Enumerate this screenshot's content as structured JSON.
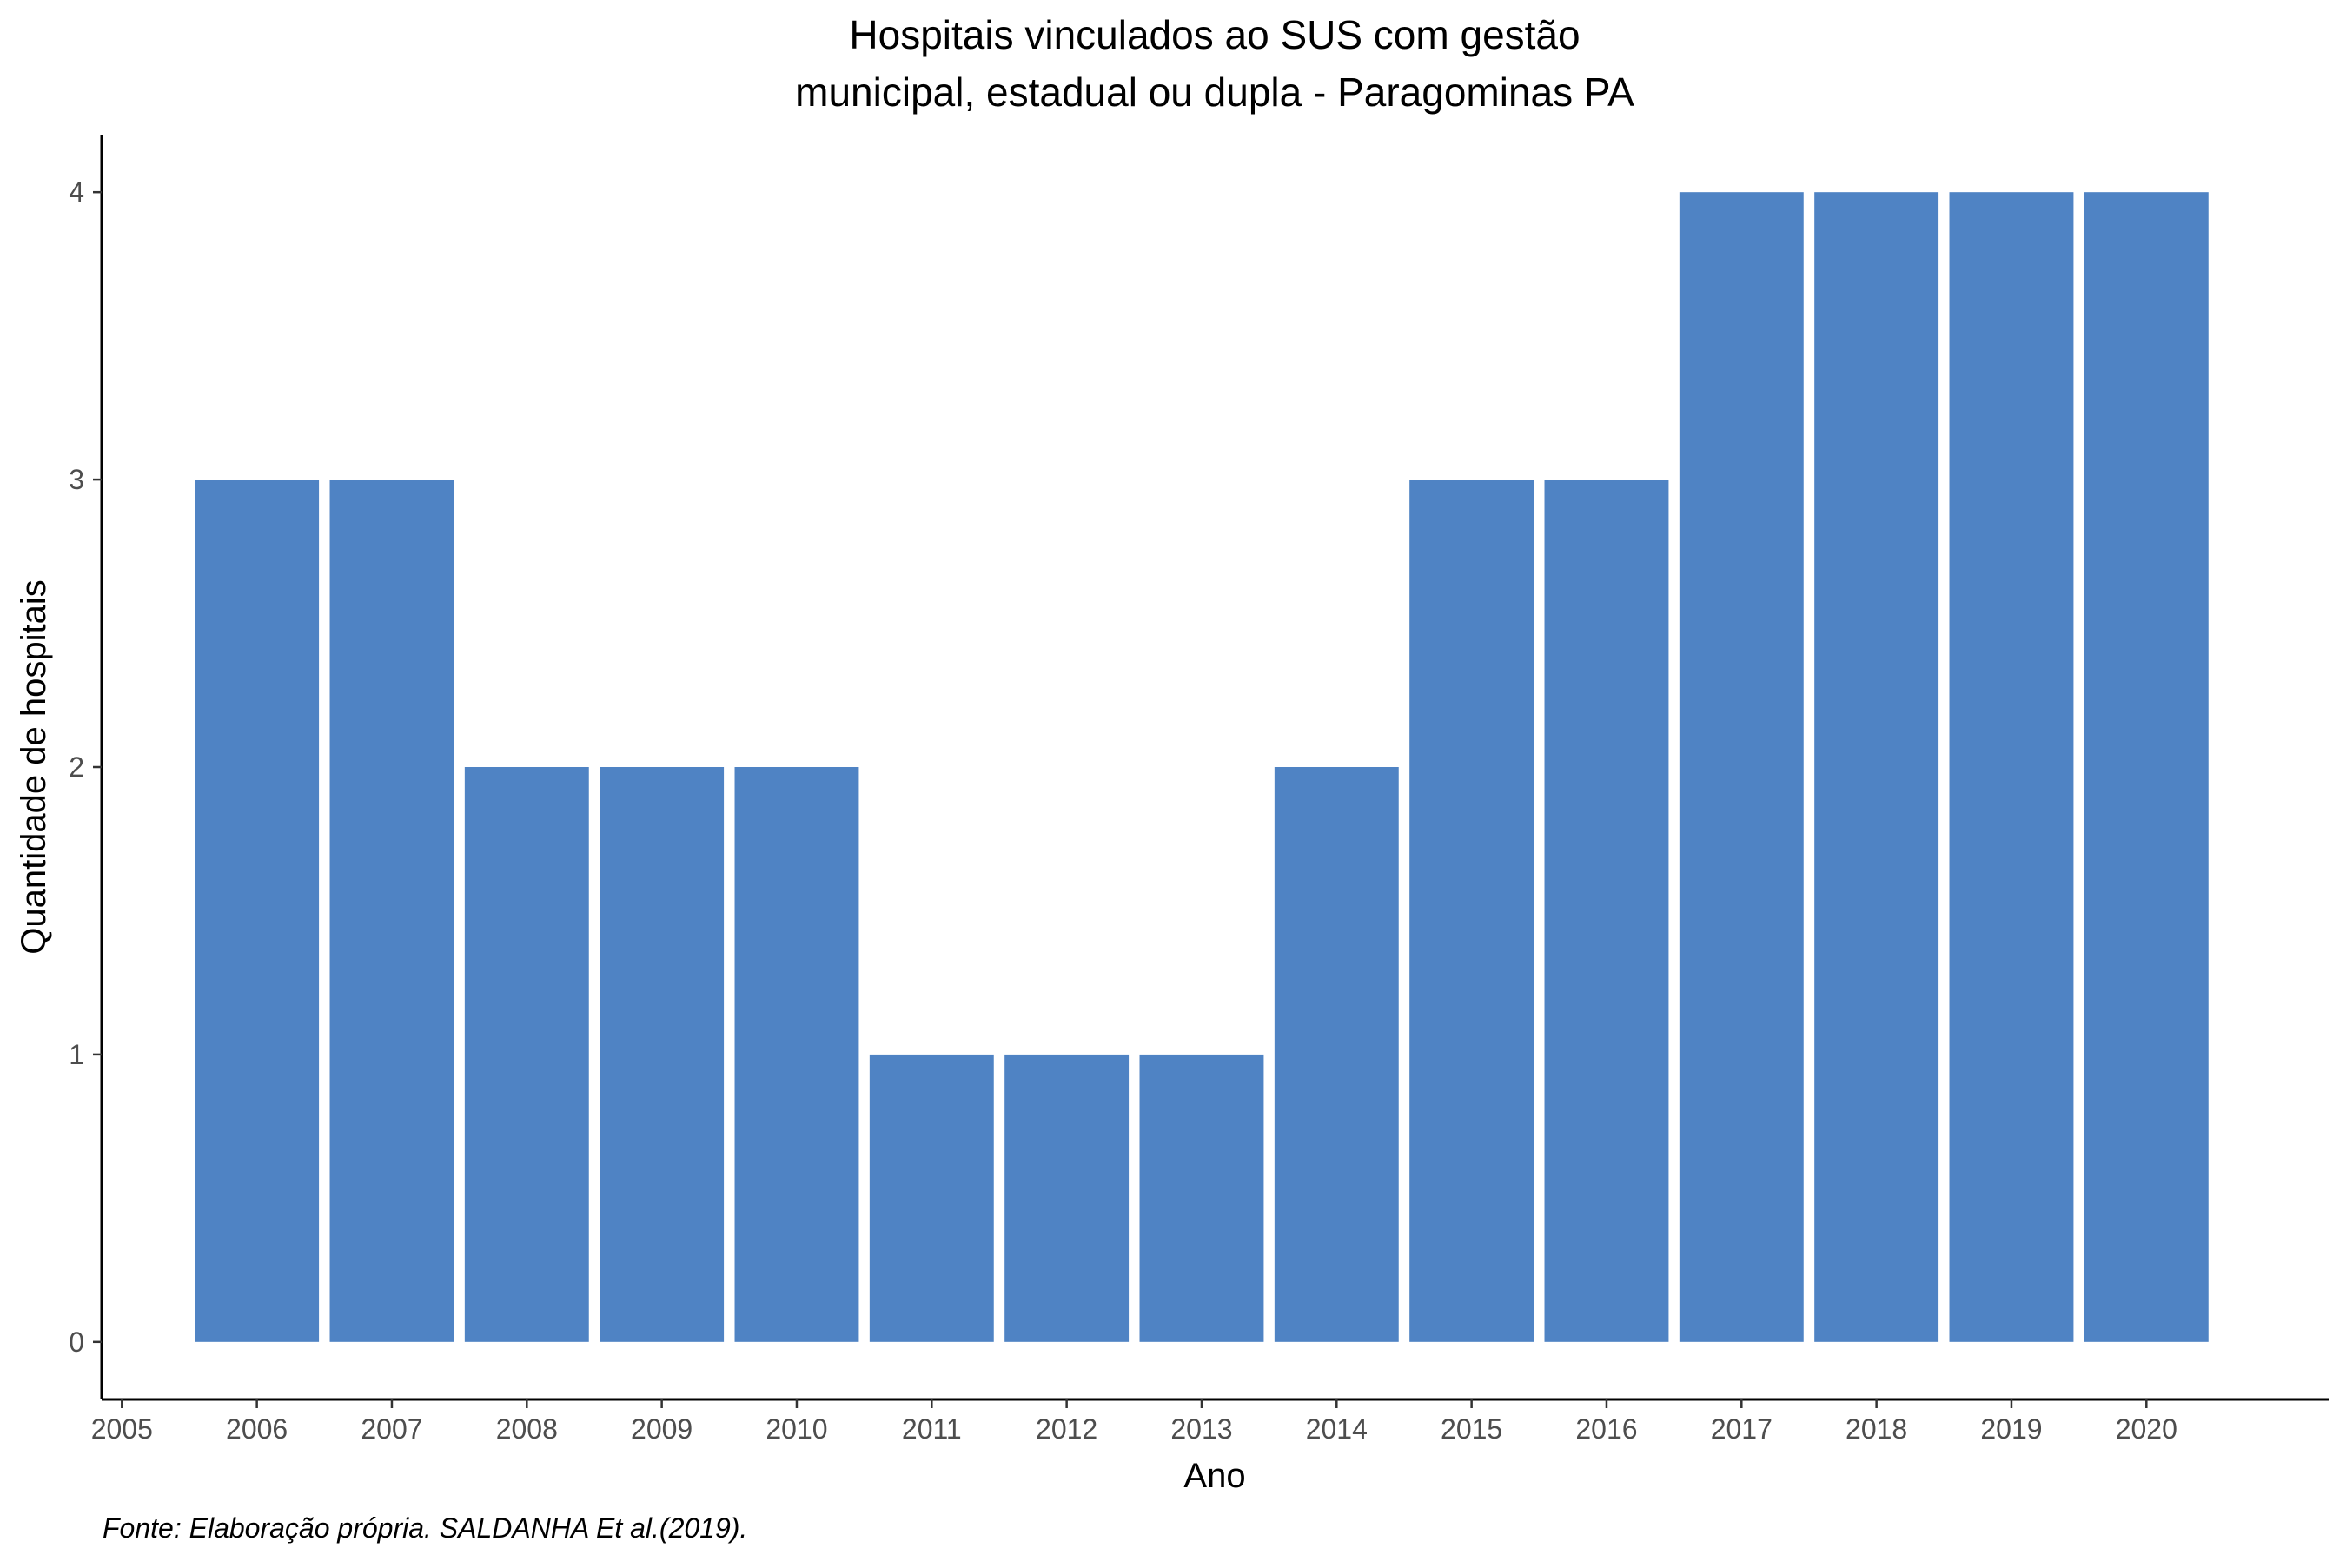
{
  "chart_data": {
    "type": "bar",
    "title_lines": [
      "Hospitais vinculados ao SUS com gestão",
      "municipal, estadual ou dupla -  Paragominas PA"
    ],
    "xlabel": "Ano",
    "ylabel": "Quantidade de hospitais",
    "caption": "Fonte: Elaboração própria. SALDANHA Et al.(2019).",
    "categories": [
      2006,
      2007,
      2008,
      2009,
      2010,
      2011,
      2012,
      2013,
      2014,
      2015,
      2016,
      2017,
      2018,
      2019,
      2020
    ],
    "values": [
      3,
      3,
      2,
      2,
      2,
      1,
      1,
      1,
      2,
      3,
      3,
      4,
      4,
      4,
      4
    ],
    "x_ticks": [
      "2005",
      "2006",
      "2007",
      "2008",
      "2009",
      "2010",
      "2011",
      "2012",
      "2013",
      "2014",
      "2015",
      "2016",
      "2017",
      "2018",
      "2019",
      "2020"
    ],
    "y_ticks": [
      "0",
      "1",
      "2",
      "3",
      "4"
    ],
    "xlim": [
      2004.85,
      2021.35
    ],
    "ylim": [
      -0.2,
      4.2
    ],
    "bar_color": "#4F83C4",
    "grid": false,
    "legend": "none"
  }
}
